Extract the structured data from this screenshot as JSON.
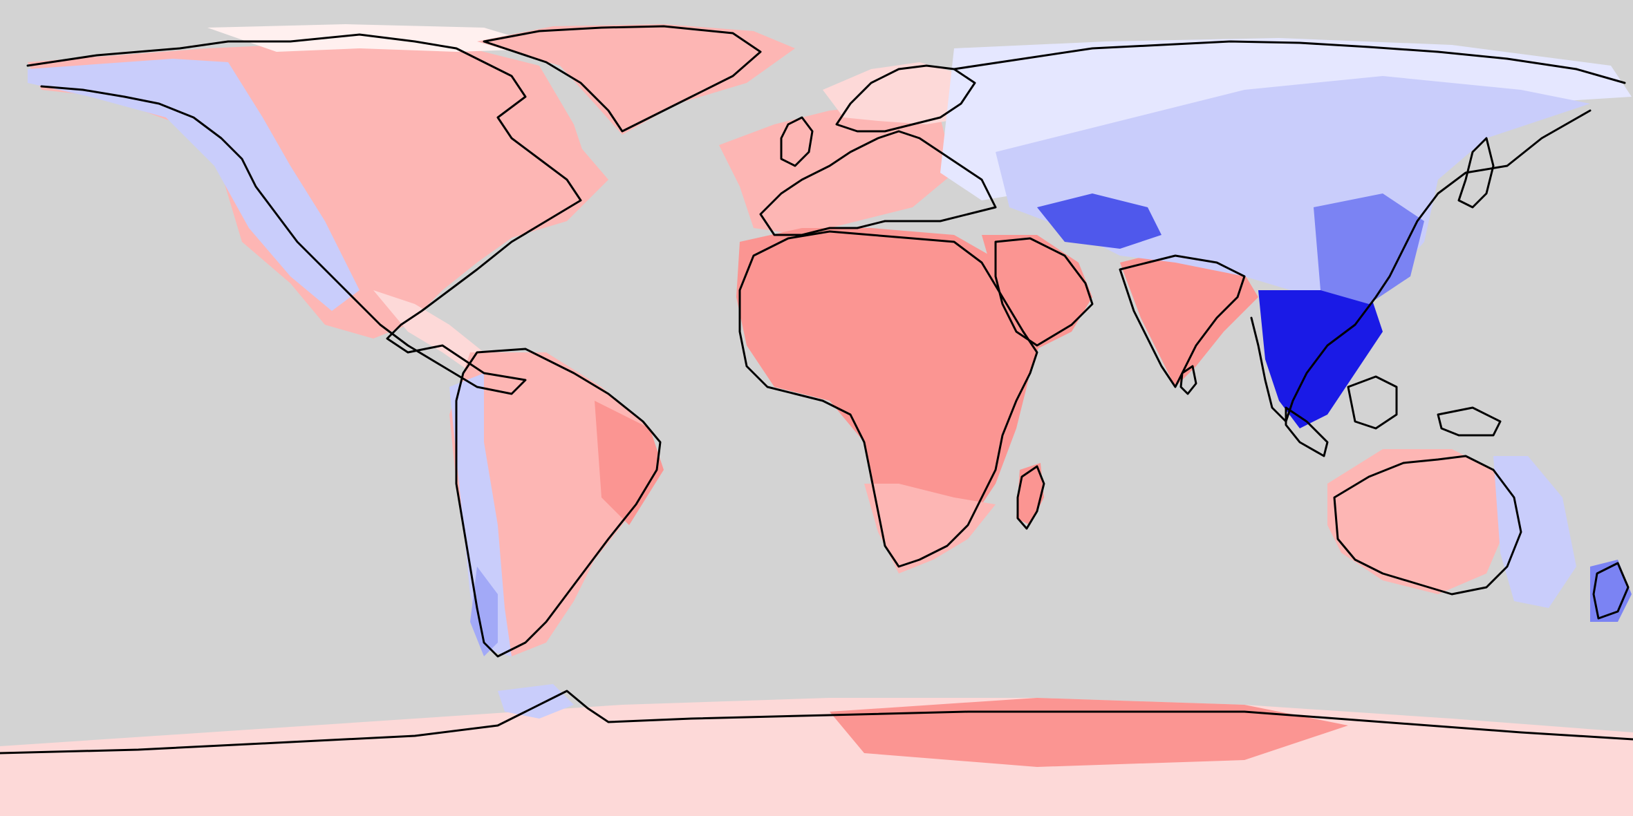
{
  "map": {
    "projection": "equirectangular",
    "background_color": "#d3d3d3",
    "coastline_color": "#000000",
    "colors": {
      "strong_positive": "#fb9592",
      "positive": "#fdb6b4",
      "weak_positive": "#fdd9d8",
      "very_weak_positive": "#fff0ef",
      "neutral": "#ffffff",
      "very_weak_negative": "#e5e7ff",
      "weak_negative": "#c9cdfb",
      "negative": "#a2a9f7",
      "moderate_negative": "#7b83f3",
      "strong_negative": "#4f58ec",
      "very_strong_negative": "#1a1ae6"
    },
    "regions": [
      {
        "name": "north-america-west",
        "level": "weak_negative"
      },
      {
        "name": "north-america-east",
        "level": "positive"
      },
      {
        "name": "greenland",
        "level": "positive"
      },
      {
        "name": "europe",
        "level": "positive"
      },
      {
        "name": "africa",
        "level": "strong_positive"
      },
      {
        "name": "southern-africa",
        "level": "positive"
      },
      {
        "name": "arabia",
        "level": "strong_positive"
      },
      {
        "name": "india",
        "level": "strong_positive"
      },
      {
        "name": "siberia",
        "level": "negative"
      },
      {
        "name": "tibet",
        "level": "strong_negative"
      },
      {
        "name": "southeast-asia",
        "level": "very_strong_negative"
      },
      {
        "name": "south-america-east",
        "level": "positive"
      },
      {
        "name": "andes",
        "level": "negative"
      },
      {
        "name": "australia-west",
        "level": "positive"
      },
      {
        "name": "australia-east",
        "level": "weak_negative"
      },
      {
        "name": "new-zealand",
        "level": "moderate_negative"
      },
      {
        "name": "antarctica-east",
        "level": "strong_positive"
      },
      {
        "name": "antarctica-west",
        "level": "weak_positive"
      }
    ]
  }
}
